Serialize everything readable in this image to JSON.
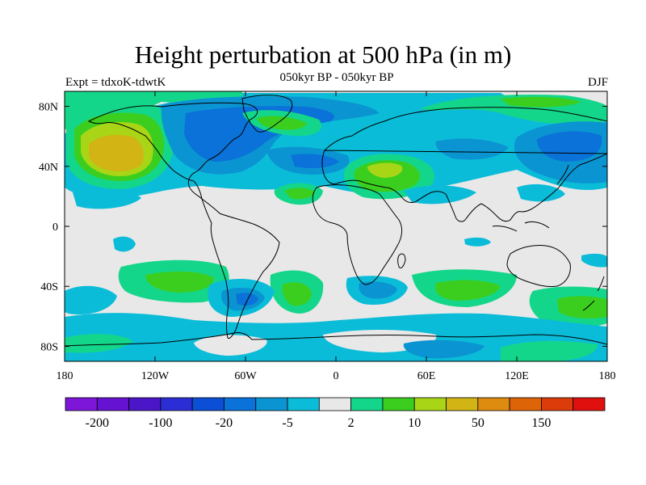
{
  "figure": {
    "title": "Height perturbation at 500 hPa (in m)",
    "subtitle": "050kyr BP - 050kyr BP",
    "left_label": "Expt = tdxoK-tdwtK",
    "right_label": "DJF"
  },
  "map": {
    "projection": "cylindrical-equidistant",
    "lon_range": [
      -180,
      180
    ],
    "lat_range": [
      -90,
      90
    ],
    "background_color": "#e8e8e8",
    "lat_ticks": [
      {
        "value": 80,
        "label": "80N"
      },
      {
        "value": 40,
        "label": "40N"
      },
      {
        "value": 0,
        "label": "0"
      },
      {
        "value": -40,
        "label": "40S"
      },
      {
        "value": -80,
        "label": "80S"
      }
    ],
    "lon_ticks": [
      {
        "value": -180,
        "label": "180"
      },
      {
        "value": -120,
        "label": "120W"
      },
      {
        "value": -60,
        "label": "60W"
      },
      {
        "value": 0,
        "label": "0"
      },
      {
        "value": 60,
        "label": "60E"
      },
      {
        "value": 120,
        "label": "120E"
      },
      {
        "value": 180,
        "label": "180"
      }
    ]
  },
  "colorbar": {
    "colors": [
      "#7d16d8",
      "#6612d2",
      "#4a16c8",
      "#2b2ed4",
      "#0a4fd6",
      "#0a72d8",
      "#0b94d2",
      "#0bbcd8",
      "#e8e8e8",
      "#14d68a",
      "#3bce1e",
      "#a8d616",
      "#d2b414",
      "#de8c10",
      "#de6408",
      "#dc3c0a",
      "#e0100e"
    ],
    "labels": [
      {
        "after_box": 1,
        "text": "-200"
      },
      {
        "after_box": 3,
        "text": "-100"
      },
      {
        "after_box": 5,
        "text": "-20"
      },
      {
        "after_box": 7,
        "text": "-5"
      },
      {
        "after_box": 9,
        "text": "2"
      },
      {
        "after_box": 11,
        "text": "10"
      },
      {
        "after_box": 13,
        "text": "50"
      },
      {
        "after_box": 15,
        "text": "150"
      }
    ]
  }
}
